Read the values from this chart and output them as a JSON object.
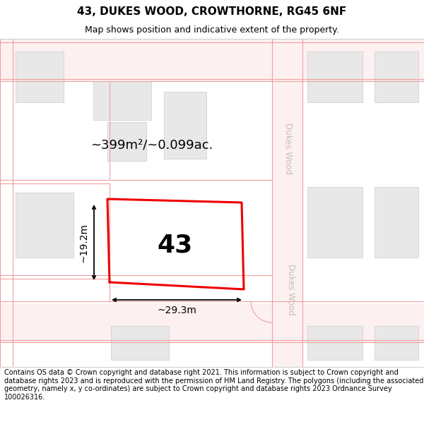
{
  "title": "43, DUKES WOOD, CROWTHORNE, RG45 6NF",
  "subtitle": "Map shows position and indicative extent of the property.",
  "footer": "Contains OS data © Crown copyright and database right 2021. This information is subject to Crown copyright and database rights 2023 and is reproduced with the permission of HM Land Registry. The polygons (including the associated geometry, namely x, y co-ordinates) are subject to Crown copyright and database rights 2023 Ordnance Survey 100026316.",
  "area_label": "~399m²/~0.099ac.",
  "number_label": "43",
  "width_label": "~29.3m",
  "height_label": "~19.2m",
  "bg_color": "#ffffff",
  "road_line_color": "#f0a0a0",
  "road_fill_color": "#fdeaea",
  "building_fill": "#e8e8e8",
  "building_edge": "#cccccc",
  "plot_color": "#ee0000",
  "street_label_color": "#c0c0c0",
  "title_color": "#000000",
  "footer_color": "#000000",
  "title_fontsize": 11,
  "subtitle_fontsize": 9,
  "footer_fontsize": 7
}
